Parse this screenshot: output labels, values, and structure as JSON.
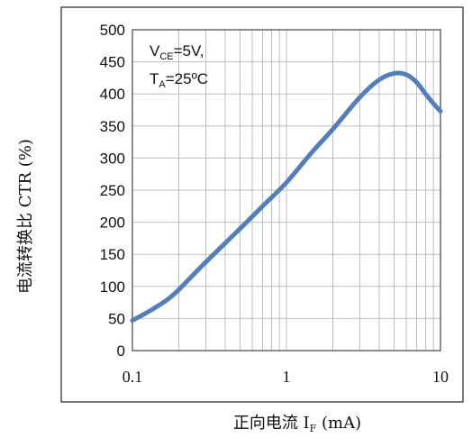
{
  "chart_data": {
    "type": "line",
    "title": "",
    "xlabel": {
      "main": "正向电流 I",
      "sub": "F",
      "unit": " (mA)"
    },
    "ylabel": "电流转换比 CTR (%)",
    "x_scale": "log",
    "xlim": [
      0.1,
      10
    ],
    "ylim": [
      0,
      500
    ],
    "x_ticks": [
      "0.1",
      "1",
      "10"
    ],
    "y_ticks": [
      "0",
      "50",
      "100",
      "150",
      "200",
      "250",
      "300",
      "350",
      "400",
      "450",
      "500"
    ],
    "grid": true,
    "annotation": {
      "line1_main": "V",
      "line1_sub": "CE",
      "line1_rest": "=5V,",
      "line2_main": "T",
      "line2_sub": "A",
      "line2_rest": "=25ºC"
    },
    "series": [
      {
        "color": "#4f7fbf",
        "x": [
          0.1,
          0.13,
          0.17,
          0.2,
          0.3,
          0.5,
          0.7,
          1.0,
          1.5,
          2.0,
          3.0,
          4.0,
          5.0,
          6.0,
          7.0,
          8.0,
          9.0,
          10.0
        ],
        "y": [
          47,
          62,
          80,
          95,
          138,
          190,
          225,
          262,
          312,
          345,
          395,
          422,
          432,
          430,
          418,
          400,
          385,
          373
        ]
      }
    ]
  }
}
